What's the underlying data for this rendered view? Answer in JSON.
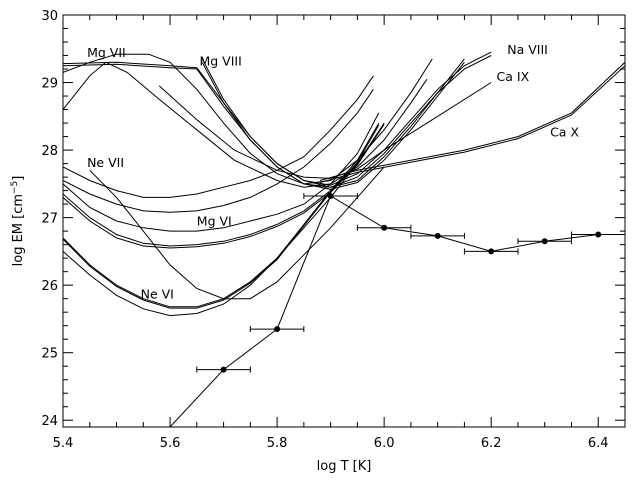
{
  "chart_data": {
    "type": "line",
    "title": "",
    "xlabel": "log T [K]",
    "ylabel_prefix": "log EM  [cm",
    "ylabel_exp": "−5",
    "ylabel_suffix": "]",
    "xlim": [
      5.4,
      6.45
    ],
    "ylim": [
      23.9,
      30.0
    ],
    "x_ticks": [
      "5.4",
      "5.6",
      "5.8",
      "6.0",
      "6.2",
      "6.4"
    ],
    "y_ticks": [
      "24",
      "25",
      "26",
      "27",
      "28",
      "29",
      "30"
    ],
    "grid": false,
    "legend": "none",
    "loci": [
      {
        "name": "Mg VII",
        "points": [
          [
            5.4,
            29.15
          ],
          [
            5.45,
            29.3
          ],
          [
            5.5,
            29.42
          ],
          [
            5.56,
            29.42
          ],
          [
            5.6,
            29.3
          ],
          [
            5.65,
            28.9
          ],
          [
            5.7,
            28.4
          ],
          [
            5.75,
            27.95
          ],
          [
            5.8,
            27.65
          ],
          [
            5.85,
            27.5
          ],
          [
            5.9,
            27.55
          ],
          [
            5.95,
            27.85
          ],
          [
            6.0,
            28.3
          ],
          [
            6.05,
            28.85
          ],
          [
            6.09,
            29.35
          ]
        ]
      },
      {
        "name": "Mg VII",
        "points": [
          [
            5.4,
            28.6
          ],
          [
            5.45,
            29.1
          ],
          [
            5.48,
            29.3
          ],
          [
            5.52,
            29.15
          ],
          [
            5.58,
            28.75
          ],
          [
            5.65,
            28.3
          ],
          [
            5.72,
            27.85
          ],
          [
            5.8,
            27.55
          ],
          [
            5.85,
            27.45
          ],
          [
            5.9,
            27.5
          ],
          [
            5.95,
            27.75
          ],
          [
            6.0,
            28.15
          ],
          [
            6.05,
            28.7
          ],
          [
            6.08,
            29.05
          ]
        ]
      },
      {
        "name": "Mg VIII",
        "points": [
          [
            5.4,
            29.28
          ],
          [
            5.5,
            29.3
          ],
          [
            5.6,
            29.25
          ],
          [
            5.65,
            29.22
          ],
          [
            5.7,
            28.7
          ],
          [
            5.75,
            28.2
          ],
          [
            5.8,
            27.8
          ],
          [
            5.85,
            27.55
          ],
          [
            5.9,
            27.45
          ],
          [
            5.95,
            27.55
          ],
          [
            6.0,
            27.9
          ],
          [
            6.05,
            28.35
          ],
          [
            6.1,
            28.85
          ],
          [
            6.15,
            29.35
          ]
        ]
      },
      {
        "name": "Mg VIII",
        "points": [
          [
            5.4,
            29.25
          ],
          [
            5.5,
            29.27
          ],
          [
            5.6,
            29.22
          ],
          [
            5.65,
            29.2
          ],
          [
            5.7,
            28.65
          ],
          [
            5.75,
            28.15
          ],
          [
            5.8,
            27.75
          ],
          [
            5.85,
            27.5
          ],
          [
            5.9,
            27.42
          ],
          [
            5.95,
            27.52
          ],
          [
            6.0,
            27.85
          ],
          [
            6.05,
            28.3
          ],
          [
            6.1,
            28.8
          ],
          [
            6.15,
            29.3
          ]
        ]
      },
      {
        "name": "Na VIII",
        "points": [
          [
            5.66,
            29.35
          ],
          [
            5.7,
            28.75
          ],
          [
            5.75,
            28.2
          ],
          [
            5.8,
            27.8
          ],
          [
            5.85,
            27.55
          ],
          [
            5.9,
            27.48
          ],
          [
            5.95,
            27.65
          ],
          [
            6.0,
            28.0
          ],
          [
            6.05,
            28.45
          ],
          [
            6.1,
            28.9
          ],
          [
            6.15,
            29.25
          ],
          [
            6.2,
            29.45
          ]
        ]
      },
      {
        "name": "Na VIII",
        "points": [
          [
            5.66,
            29.3
          ],
          [
            5.7,
            28.7
          ],
          [
            5.75,
            28.15
          ],
          [
            5.8,
            27.75
          ],
          [
            5.85,
            27.5
          ],
          [
            5.9,
            27.45
          ],
          [
            5.95,
            27.6
          ],
          [
            6.0,
            27.95
          ],
          [
            6.05,
            28.4
          ],
          [
            6.1,
            28.85
          ],
          [
            6.15,
            29.2
          ],
          [
            6.2,
            29.4
          ]
        ]
      },
      {
        "name": "Ca IX",
        "points": [
          [
            5.58,
            28.95
          ],
          [
            5.65,
            28.45
          ],
          [
            5.72,
            28.0
          ],
          [
            5.8,
            27.7
          ],
          [
            5.85,
            27.6
          ],
          [
            5.9,
            27.58
          ],
          [
            5.95,
            27.72
          ],
          [
            6.0,
            28.0
          ],
          [
            6.1,
            28.5
          ],
          [
            6.2,
            29.0
          ]
        ]
      },
      {
        "name": "Ca X",
        "points": [
          [
            5.88,
            27.55
          ],
          [
            5.95,
            27.7
          ],
          [
            6.05,
            27.85
          ],
          [
            6.15,
            28.0
          ],
          [
            6.25,
            28.2
          ],
          [
            6.35,
            28.55
          ],
          [
            6.45,
            29.3
          ]
        ]
      },
      {
        "name": "Ca X",
        "points": [
          [
            5.88,
            27.52
          ],
          [
            5.95,
            27.67
          ],
          [
            6.05,
            27.82
          ],
          [
            6.15,
            27.97
          ],
          [
            6.25,
            28.17
          ],
          [
            6.35,
            28.52
          ],
          [
            6.45,
            29.25
          ]
        ]
      },
      {
        "name": "Mg VI",
        "points": [
          [
            5.4,
            27.5
          ],
          [
            5.45,
            27.15
          ],
          [
            5.5,
            26.95
          ],
          [
            5.55,
            26.85
          ],
          [
            5.6,
            26.8
          ],
          [
            5.65,
            26.8
          ],
          [
            5.7,
            26.85
          ],
          [
            5.75,
            26.95
          ],
          [
            5.8,
            27.05
          ],
          [
            5.85,
            27.2
          ],
          [
            5.9,
            27.5
          ],
          [
            5.95,
            27.95
          ],
          [
            5.99,
            28.55
          ]
        ]
      },
      {
        "name": "Mg VI",
        "points": [
          [
            5.4,
            27.35
          ],
          [
            5.45,
            27.0
          ],
          [
            5.5,
            26.75
          ],
          [
            5.55,
            26.62
          ],
          [
            5.6,
            26.58
          ],
          [
            5.65,
            26.6
          ],
          [
            5.7,
            26.65
          ],
          [
            5.75,
            26.75
          ],
          [
            5.8,
            26.9
          ],
          [
            5.85,
            27.1
          ],
          [
            5.9,
            27.4
          ],
          [
            5.95,
            27.85
          ],
          [
            5.99,
            28.4
          ]
        ]
      },
      {
        "name": "Mg VI",
        "points": [
          [
            5.4,
            27.3
          ],
          [
            5.45,
            26.95
          ],
          [
            5.5,
            26.7
          ],
          [
            5.55,
            26.58
          ],
          [
            5.6,
            26.55
          ],
          [
            5.65,
            26.57
          ],
          [
            5.7,
            26.62
          ],
          [
            5.75,
            26.72
          ],
          [
            5.8,
            26.87
          ],
          [
            5.85,
            27.07
          ],
          [
            5.9,
            27.37
          ],
          [
            5.95,
            27.82
          ],
          [
            5.99,
            28.37
          ]
        ]
      },
      {
        "name": "Ne VI",
        "points": [
          [
            5.4,
            26.7
          ],
          [
            5.45,
            26.3
          ],
          [
            5.5,
            26.0
          ],
          [
            5.55,
            25.8
          ],
          [
            5.6,
            25.68
          ],
          [
            5.65,
            25.68
          ],
          [
            5.7,
            25.8
          ],
          [
            5.75,
            26.05
          ],
          [
            5.8,
            26.4
          ],
          [
            5.85,
            26.9
          ],
          [
            5.9,
            27.4
          ],
          [
            5.95,
            27.8
          ],
          [
            6.0,
            28.4
          ]
        ]
      },
      {
        "name": "Ne VI",
        "points": [
          [
            5.4,
            26.68
          ],
          [
            5.45,
            26.28
          ],
          [
            5.5,
            25.98
          ],
          [
            5.55,
            25.78
          ],
          [
            5.6,
            25.66
          ],
          [
            5.65,
            25.66
          ],
          [
            5.7,
            25.78
          ],
          [
            5.75,
            26.03
          ],
          [
            5.8,
            26.38
          ],
          [
            5.85,
            26.88
          ],
          [
            5.9,
            27.38
          ],
          [
            5.95,
            27.78
          ],
          [
            6.0,
            28.38
          ]
        ]
      },
      {
        "name": "Ne VI",
        "points": [
          [
            5.4,
            26.5
          ],
          [
            5.45,
            26.15
          ],
          [
            5.5,
            25.85
          ],
          [
            5.55,
            25.65
          ],
          [
            5.6,
            25.55
          ],
          [
            5.65,
            25.58
          ],
          [
            5.7,
            25.72
          ],
          [
            5.75,
            26.0
          ],
          [
            5.8,
            26.4
          ],
          [
            5.85,
            26.85
          ],
          [
            5.9,
            27.3
          ],
          [
            5.95,
            27.8
          ]
        ]
      },
      {
        "name": "Ne VII",
        "points": [
          [
            5.45,
            27.7
          ],
          [
            5.5,
            27.3
          ],
          [
            5.55,
            26.8
          ],
          [
            5.6,
            26.3
          ],
          [
            5.65,
            25.95
          ],
          [
            5.7,
            25.8
          ],
          [
            5.75,
            25.8
          ],
          [
            5.8,
            26.05
          ],
          [
            5.85,
            26.45
          ],
          [
            5.9,
            26.85
          ],
          [
            5.95,
            27.3
          ],
          [
            6.0,
            27.75
          ]
        ]
      },
      {
        "name": "Ne VII",
        "points": [
          [
            5.4,
            27.75
          ],
          [
            5.45,
            27.55
          ],
          [
            5.5,
            27.4
          ],
          [
            5.55,
            27.3
          ],
          [
            5.6,
            27.3
          ],
          [
            5.65,
            27.35
          ],
          [
            5.7,
            27.45
          ],
          [
            5.75,
            27.55
          ],
          [
            5.8,
            27.7
          ],
          [
            5.85,
            27.9
          ],
          [
            5.9,
            28.3
          ],
          [
            5.95,
            28.75
          ],
          [
            5.98,
            29.1
          ]
        ]
      },
      {
        "name": "Ne VII",
        "points": [
          [
            5.4,
            27.55
          ],
          [
            5.45,
            27.35
          ],
          [
            5.5,
            27.2
          ],
          [
            5.55,
            27.1
          ],
          [
            5.6,
            27.08
          ],
          [
            5.65,
            27.1
          ],
          [
            5.7,
            27.18
          ],
          [
            5.75,
            27.3
          ],
          [
            5.8,
            27.5
          ],
          [
            5.85,
            27.75
          ],
          [
            5.9,
            28.1
          ],
          [
            5.95,
            28.55
          ],
          [
            5.98,
            28.9
          ]
        ]
      }
    ],
    "dem_points": [
      {
        "x": 5.7,
        "y": 24.75,
        "xerr": 0.05
      },
      {
        "x": 5.8,
        "y": 25.35,
        "xerr": 0.05
      },
      {
        "x": 5.9,
        "y": 27.32,
        "xerr": 0.05
      },
      {
        "x": 6.0,
        "y": 26.85,
        "xerr": 0.05
      },
      {
        "x": 6.1,
        "y": 26.73,
        "xerr": 0.05
      },
      {
        "x": 6.2,
        "y": 26.5,
        "xerr": 0.05
      },
      {
        "x": 6.3,
        "y": 26.65,
        "xerr": 0.05
      },
      {
        "x": 6.4,
        "y": 26.75,
        "xerr": 0.05
      }
    ],
    "dem_extension": {
      "from": [
        5.6,
        23.9
      ],
      "to": [
        5.7,
        24.75
      ],
      "end_x": 6.45,
      "end_y": 26.75
    },
    "annotations": [
      {
        "text": "Mg VII",
        "x": 5.445,
        "y": 29.38
      },
      {
        "text": "Mg VIII",
        "x": 5.655,
        "y": 29.25
      },
      {
        "text": "Na VIII",
        "x": 6.23,
        "y": 29.42
      },
      {
        "text": "Ca IX",
        "x": 6.21,
        "y": 29.02
      },
      {
        "text": "Ca X",
        "x": 6.31,
        "y": 28.2
      },
      {
        "text": "Ne VII",
        "x": 5.445,
        "y": 27.75
      },
      {
        "text": "Mg VI",
        "x": 5.65,
        "y": 26.88
      },
      {
        "text": "Ne VI",
        "x": 5.545,
        "y": 25.8
      }
    ]
  }
}
